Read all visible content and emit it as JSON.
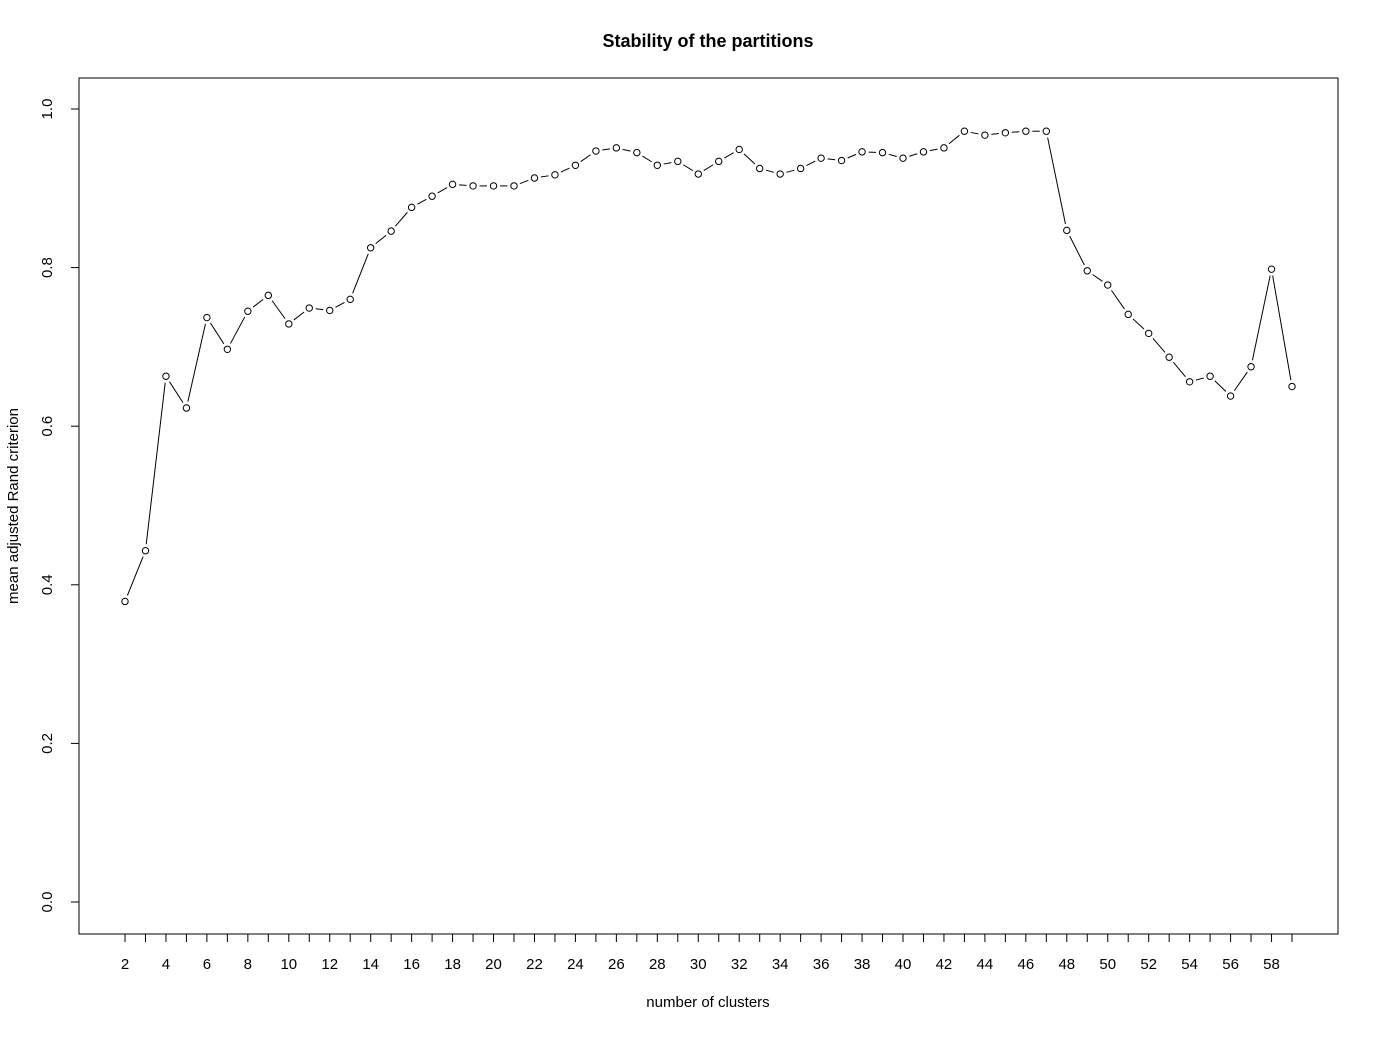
{
  "chart_data": {
    "type": "line",
    "title": "Stability of the partitions",
    "xlabel": "number of clusters",
    "ylabel": "mean adjusted Rand criterion",
    "xlim": [
      2,
      59
    ],
    "ylim": [
      0,
      1
    ],
    "x_ticks": [
      2,
      3,
      4,
      5,
      6,
      7,
      8,
      9,
      10,
      11,
      12,
      13,
      14,
      15,
      16,
      17,
      18,
      19,
      20,
      21,
      22,
      23,
      24,
      25,
      26,
      27,
      28,
      29,
      30,
      31,
      32,
      33,
      34,
      35,
      36,
      37,
      38,
      39,
      40,
      41,
      42,
      43,
      44,
      45,
      46,
      47,
      48,
      49,
      50,
      51,
      52,
      53,
      54,
      55,
      56,
      57,
      58,
      59
    ],
    "x_tick_labels": [
      "2",
      "",
      "4",
      "",
      "6",
      "",
      "8",
      "",
      "10",
      "",
      "12",
      "",
      "14",
      "",
      "16",
      "",
      "18",
      "",
      "20",
      "",
      "22",
      "",
      "24",
      "",
      "26",
      "",
      "28",
      "",
      "30",
      "",
      "32",
      "",
      "34",
      "",
      "36",
      "",
      "38",
      "",
      "40",
      "",
      "42",
      "",
      "44",
      "",
      "46",
      "",
      "48",
      "",
      "50",
      "",
      "52",
      "",
      "54",
      "",
      "56",
      "",
      "58",
      ""
    ],
    "y_ticks": [
      0.0,
      0.2,
      0.4,
      0.6,
      0.8,
      1.0
    ],
    "y_tick_labels": [
      "0.0",
      "0.2",
      "0.4",
      "0.6",
      "0.8",
      "1.0"
    ],
    "grid": false,
    "marker": "open-circle",
    "series": [
      {
        "x": [
          2,
          3,
          4,
          5,
          6,
          7,
          8,
          9,
          10,
          11,
          12,
          13,
          14,
          15,
          16,
          17,
          18,
          19,
          20,
          21,
          22,
          23,
          24,
          25,
          26,
          27,
          28,
          29,
          30,
          31,
          32,
          33,
          34,
          35,
          36,
          37,
          38,
          39,
          40,
          41,
          42,
          43,
          44,
          45,
          46,
          47,
          48,
          49,
          50,
          51,
          52,
          53,
          54,
          55,
          56,
          57,
          58,
          59
        ],
        "values": [
          0.379,
          0.443,
          0.663,
          0.623,
          0.737,
          0.697,
          0.745,
          0.765,
          0.729,
          0.749,
          0.746,
          0.76,
          0.825,
          0.846,
          0.876,
          0.89,
          0.905,
          0.903,
          0.903,
          0.903,
          0.913,
          0.917,
          0.929,
          0.947,
          0.951,
          0.945,
          0.929,
          0.934,
          0.918,
          0.934,
          0.949,
          0.925,
          0.918,
          0.925,
          0.938,
          0.935,
          0.946,
          0.945,
          0.938,
          0.946,
          0.951,
          0.972,
          0.967,
          0.97,
          0.972,
          0.972,
          0.847,
          0.796,
          0.778,
          0.741,
          0.717,
          0.687,
          0.656,
          0.663,
          0.638,
          0.675,
          0.798,
          0.65
        ]
      }
    ],
    "colors": {
      "line": "#000000",
      "marker_fill": "#ffffff",
      "axis": "#000000",
      "background": "#ffffff"
    }
  }
}
